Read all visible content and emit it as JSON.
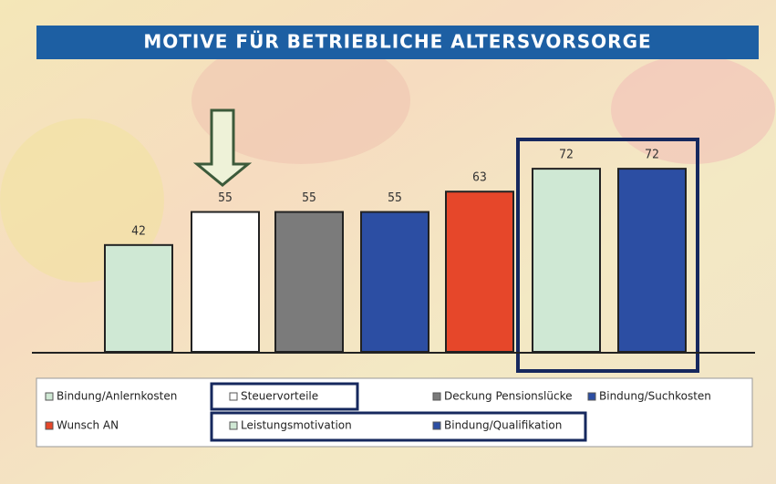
{
  "chart_data": {
    "type": "bar",
    "title": "MOTIVE FÜR BETRIEBLICHE ALTERSVORSORGE",
    "series": [
      {
        "name": "Bindung/Anlernkosten",
        "color": "#cfe8d4",
        "values": [
          42
        ]
      },
      {
        "name": "Steuervorteile",
        "color": "#ffffff",
        "values": [
          55
        ]
      },
      {
        "name": "Deckung Pensionslücke",
        "color": "#7b7b7b",
        "values": [
          55
        ]
      },
      {
        "name": "Bindung/Suchkosten",
        "color": "#2c4ea3",
        "values": [
          55
        ]
      },
      {
        "name": "Wunsch AN",
        "color": "#e6472a",
        "values": [
          63
        ]
      },
      {
        "name": "Leistungsmotivation",
        "color": "#cfe8d4",
        "values": [
          72
        ]
      },
      {
        "name": "Bindung/Qualifikation",
        "color": "#2c4ea3",
        "values": [
          72
        ]
      }
    ]
  }
}
